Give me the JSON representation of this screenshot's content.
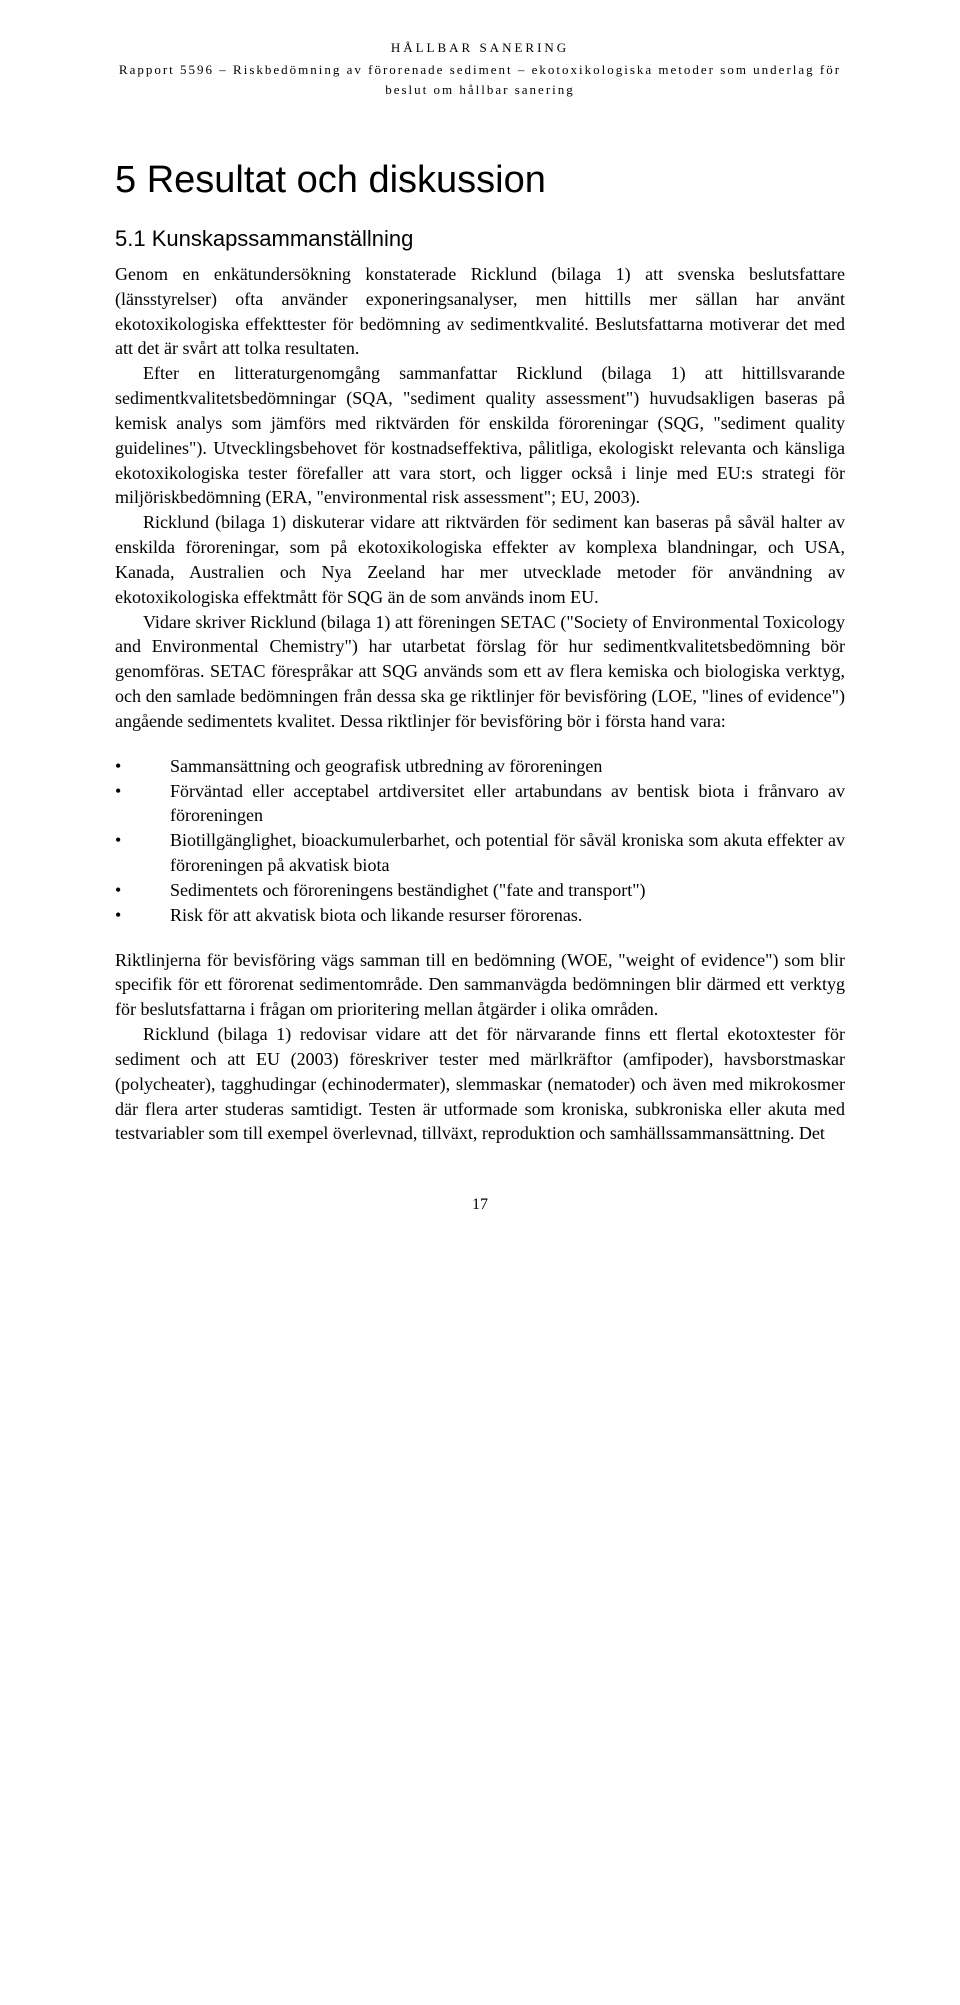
{
  "header": {
    "title": "HÅLLBAR SANERING",
    "subtitle": "Rapport 5596 – Riskbedömning av förorenade sediment – ekotoxikologiska metoder som underlag för beslut om hållbar sanering"
  },
  "chapter": {
    "title": "5 Resultat och diskussion"
  },
  "section": {
    "title": "5.1 Kunskapssammanställning"
  },
  "paragraphs": {
    "p1": "Genom en enkätundersökning konstaterade Ricklund (bilaga 1) att svenska beslutsfattare (länsstyrelser) ofta använder exponeringsanalyser, men hittills mer sällan har använt ekotoxikologiska effekttester för bedömning av sedimentkvalité. Beslutsfattarna motiverar det med att det är svårt att tolka resultaten.",
    "p2": "Efter en litteraturgenomgång sammanfattar Ricklund (bilaga 1) att hittillsvarande sedimentkvalitetsbedömningar (SQA, \"sediment quality assessment\") huvudsakligen baseras på kemisk analys som jämförs med riktvärden för enskilda föroreningar (SQG, \"sediment quality guidelines\"). Utvecklingsbehovet för kostnadseffektiva, pålitliga, ekologiskt relevanta och känsliga ekotoxikologiska tester förefaller att vara stort, och ligger också i linje med EU:s strategi för miljöriskbedömning (ERA, \"environmental risk assessment\"; EU, 2003).",
    "p3": "Ricklund (bilaga 1) diskuterar vidare att riktvärden för sediment kan baseras på såväl halter av enskilda föroreningar, som på ekotoxikologiska effekter av komplexa blandningar, och USA, Kanada, Australien och Nya Zeeland har mer utvecklade metoder för användning av ekotoxikologiska effektmått för SQG än de som används inom EU.",
    "p4": "Vidare skriver Ricklund (bilaga 1) att föreningen SETAC (\"Society of Environmental Toxicology and Environmental Chemistry\") har utarbetat förslag för hur sedimentkvalitetsbedömning bör genomföras. SETAC förespråkar att SQG används som ett av flera kemiska och biologiska verktyg, och den samlade bedömningen från dessa ska ge riktlinjer för bevisföring (LOE, \"lines of evidence\") angående sedimentets kvalitet. Dessa riktlinjer för bevisföring bör i första hand vara:",
    "p5": "Riktlinjerna för bevisföring vägs samman till en bedömning (WOE, \"weight of evidence\") som blir specifik för ett förorenat sedimentområde. Den sammanvägda bedömningen blir därmed ett verktyg för beslutsfattarna i frågan om prioritering mellan åtgärder i olika områden.",
    "p6": "Ricklund (bilaga 1) redovisar vidare att det för närvarande finns ett flertal ekotoxtester för sediment och att EU (2003) föreskriver tester med märlkräftor (amfipoder), havsborstmaskar (polycheater), tagghudingar (echinodermater), slemmaskar (nematoder) och även med mikrokosmer där flera arter studeras samtidigt. Testen är utformade som kroniska, subkroniska eller akuta med testvariabler som till exempel överlevnad, tillväxt, reproduktion och samhällssammansättning. Det"
  },
  "bullets": {
    "b1": "Sammansättning och geografisk utbredning av föroreningen",
    "b2": "Förväntad eller acceptabel artdiversitet eller artabundans av bentisk biota i frånvaro av föroreningen",
    "b3": "Biotillgänglighet, bioackumulerbarhet, och potential för såväl kroniska som akuta effekter av föroreningen på akvatisk biota",
    "b4": "Sedimentets och föroreningens beständighet (\"fate and transport\")",
    "b5": "Risk för att akvatisk biota och likande resurser förorenas."
  },
  "pageNumber": "17"
}
